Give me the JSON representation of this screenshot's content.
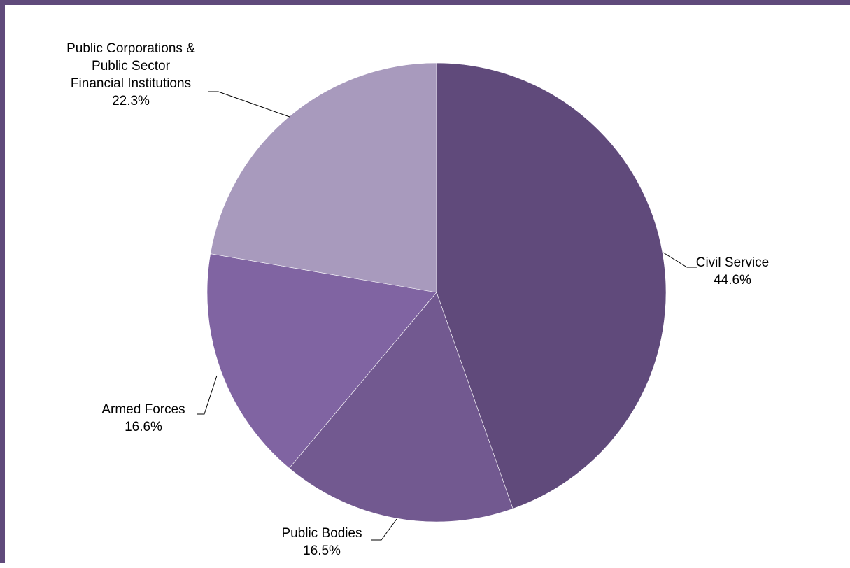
{
  "chart_data": {
    "type": "pie",
    "title": "",
    "start_angle_deg": 0,
    "direction": "clockwise",
    "slices": [
      {
        "label_lines": [
          "Civil Service"
        ],
        "value": 44.6,
        "value_label": "44.6%",
        "color": "#604a7b"
      },
      {
        "label_lines": [
          "Public Bodies"
        ],
        "value": 16.5,
        "value_label": "16.5%",
        "color": "#725990"
      },
      {
        "label_lines": [
          "Armed Forces"
        ],
        "value": 16.6,
        "value_label": "16.6%",
        "color": "#8064a2"
      },
      {
        "label_lines": [
          "Public Corporations &",
          "Public Sector",
          "Financial Institutions"
        ],
        "value": 22.3,
        "value_label": "22.3%",
        "color": "#a89abd"
      }
    ],
    "legend": "none",
    "frame_color": "#604a7b"
  }
}
